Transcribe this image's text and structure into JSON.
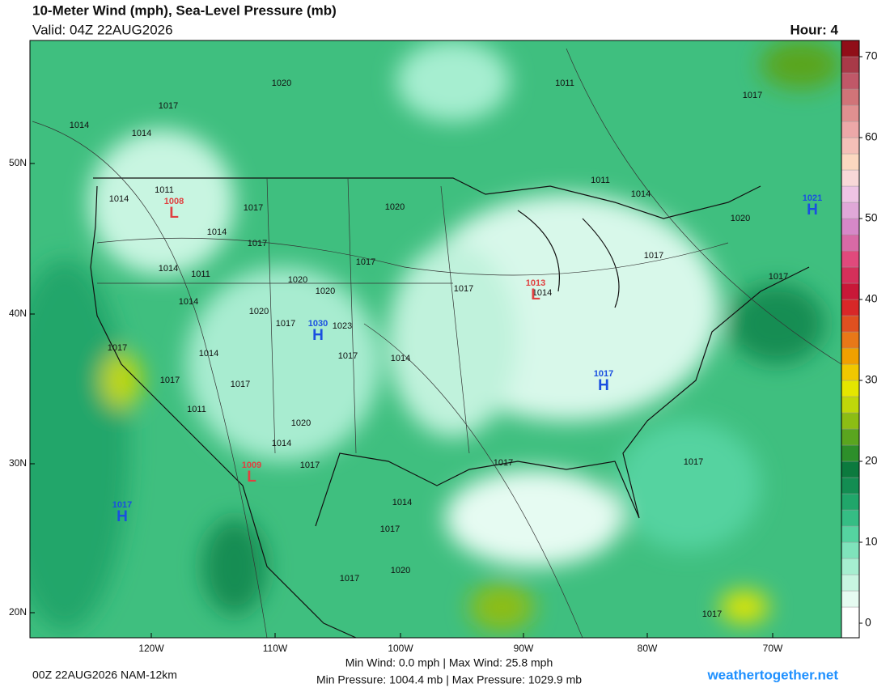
{
  "header": {
    "title": "10-Meter Wind (mph), Sea-Level Pressure (mb)",
    "valid": "Valid: 04Z 22AUG2026",
    "hour": "Hour: 4"
  },
  "map": {
    "lat_labels": [
      "50N",
      "40N",
      "30N",
      "20N"
    ],
    "lon_labels": [
      "120W",
      "110W",
      "100W",
      "90W",
      "80W",
      "70W"
    ],
    "highs": [
      {
        "symbol": "H",
        "pressure": "1021"
      },
      {
        "symbol": "H",
        "pressure": "1030"
      },
      {
        "symbol": "H",
        "pressure": "1017"
      },
      {
        "symbol": "H",
        "pressure": "1017"
      }
    ],
    "lows": [
      {
        "symbol": "L",
        "pressure": "1008"
      },
      {
        "symbol": "L",
        "pressure": "1013"
      },
      {
        "symbol": "L",
        "pressure": "1009"
      }
    ],
    "isobar_labels": [
      "1020",
      "1017",
      "1014",
      "1014",
      "1011",
      "1017",
      "1011",
      "1014",
      "1020",
      "1014",
      "1011",
      "1017",
      "1014",
      "1017",
      "1014",
      "1011",
      "1017",
      "1020",
      "1017",
      "1017",
      "1020",
      "1020",
      "1017",
      "1014",
      "1014",
      "1020",
      "1017",
      "1023",
      "1014",
      "1017",
      "1014",
      "1017",
      "1017",
      "1011",
      "1020",
      "1014",
      "1017",
      "1017",
      "1017",
      "1014",
      "1017",
      "1020",
      "1017",
      "1017",
      "1017"
    ]
  },
  "colorbar": {
    "lim": [
      -1.8,
      72
    ],
    "ticks": [
      0,
      10,
      20,
      30,
      40,
      50,
      60,
      70
    ],
    "colors": [
      "#ffffff",
      "#e6fbf1",
      "#c8f5e1",
      "#a6eed0",
      "#7fe3bb",
      "#55d3a0",
      "#35bd84",
      "#20a66a",
      "#138d52",
      "#0c7a3e",
      "#2d8f2a",
      "#5aa51f",
      "#8cbd14",
      "#bfd70a",
      "#e4e600",
      "#f0c800",
      "#f0a000",
      "#e87818",
      "#e05020",
      "#d82828",
      "#c81838",
      "#d4305a",
      "#e04a7c",
      "#d86aa6",
      "#d688c8",
      "#e0a8d8",
      "#eec4e4",
      "#f8d8d8",
      "#fbd8c0",
      "#f4c0b8",
      "#eca8a8",
      "#e09090",
      "#d07478",
      "#c05868",
      "#a83a48",
      "#900e18"
    ]
  },
  "footer": {
    "run": "00Z 22AUG2026 NAM-12km",
    "wind": "Min Wind:   0.0 mph | Max Wind: 25.8 mph",
    "pressure": "Min Pressure: 1004.4 mb | Max Pressure: 1029.9 mb",
    "site": "weathertogether.net"
  }
}
